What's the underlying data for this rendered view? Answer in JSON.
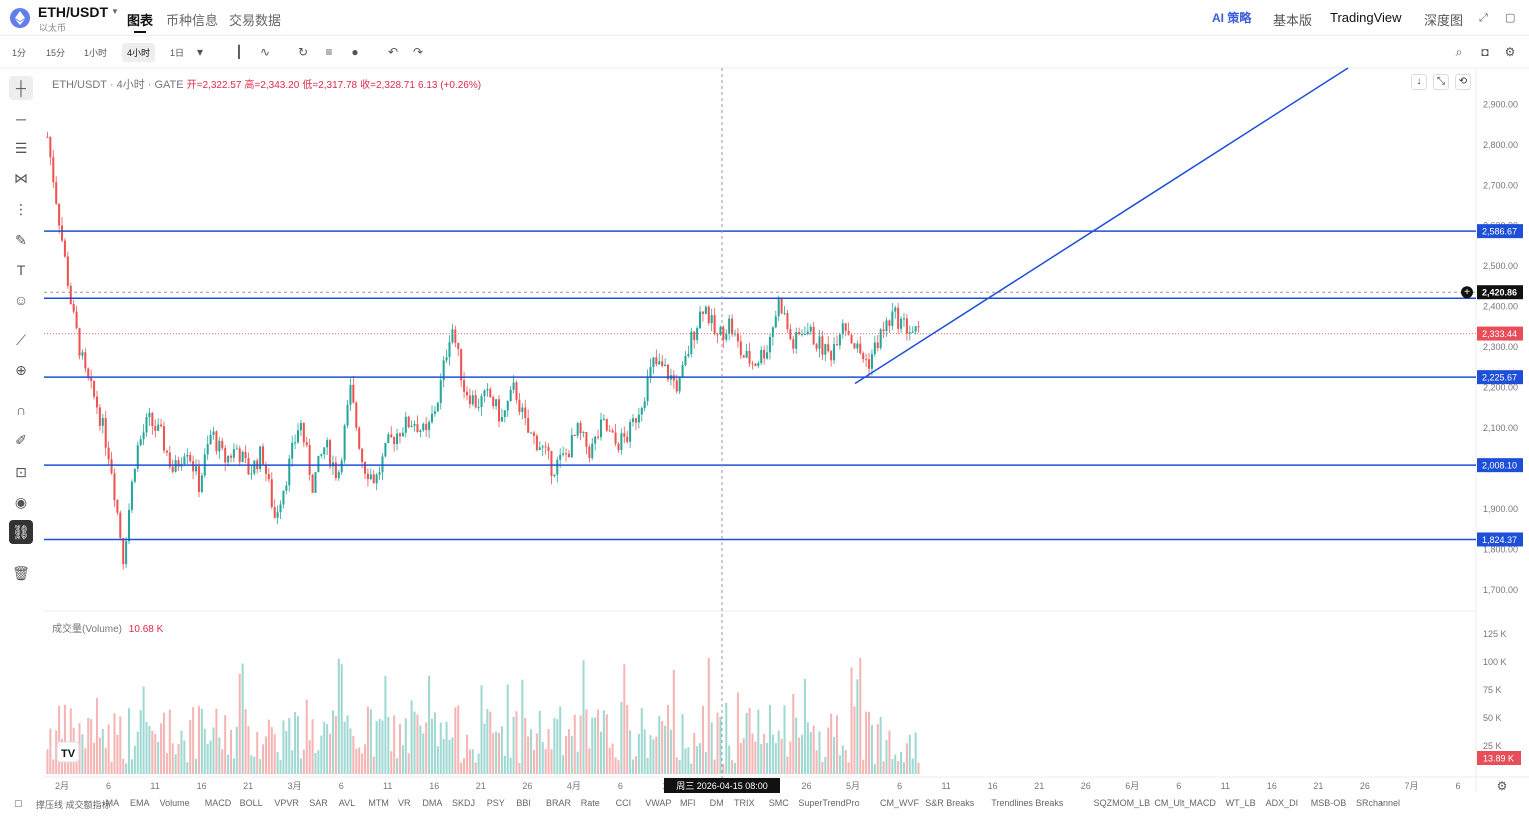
{
  "header": {
    "pair": "ETH/USDT",
    "subtitle": "以太币",
    "tabs": [
      "图表",
      "币种信息",
      "交易数据"
    ],
    "ai_label": "AI 策略",
    "links": [
      "基本版",
      "TradingView",
      "深度图"
    ]
  },
  "toolbar": {
    "timeframes": [
      "1分",
      "15分",
      "1小时",
      "4小时",
      "1日"
    ],
    "active_timeframe": "4小时"
  },
  "chart": {
    "symbol_line": "ETH/USDT · 4小时 · GATE",
    "open_label": "开=2,322.57",
    "high_label": "高=2,343.20",
    "low_label": "低=2,317.78",
    "close_label": "收=2,328.71",
    "change_label": "6.13 (+0.26%)",
    "volume_label": "成交量(Volume)",
    "volume_value": "10.68 K",
    "crosshair_time": "周三 2026-04-15   08:00",
    "colors": {
      "up": "#26a69a",
      "down": "#ef5350",
      "hline": "#1e4fd8",
      "accent": "#e0294a"
    }
  },
  "chart_data": {
    "type": "candlestick",
    "price_ticks": [
      "2,900.00",
      "2,800.00",
      "2,700.00",
      "2,600.00",
      "2,500.00",
      "2,400.00",
      "2,300.00",
      "2,200.00",
      "2,100.00",
      "2,000.00",
      "1,900.00",
      "1,800.00",
      "1,700.00"
    ],
    "volume_ticks": [
      "125 K",
      "100 K",
      "75 K",
      "50 K",
      "25 K"
    ],
    "ylim": [
      1650,
      2990
    ],
    "x_labels": [
      "2月",
      "6",
      "11",
      "16",
      "21",
      "3月",
      "6",
      "11",
      "16",
      "21",
      "26",
      "4月",
      "6",
      "11",
      "16",
      "21",
      "26",
      "5月",
      "6",
      "11",
      "16",
      "21",
      "26",
      "6月",
      "6",
      "11",
      "16",
      "21",
      "26",
      "7月",
      "6"
    ],
    "horizontal_lines": [
      {
        "value": 2586.67,
        "label": "2,586.67"
      },
      {
        "value": 2420.86,
        "label": ""
      },
      {
        "value": 2225.67,
        "label": "2,225.67"
      },
      {
        "value": 2008.1,
        "label": "2,008.10"
      },
      {
        "value": 1824.37,
        "label": "1,824.37"
      }
    ],
    "price_labels": [
      {
        "value": 2420.86,
        "label": "2,420.86",
        "style": "dark"
      },
      {
        "value": 2333.44,
        "label": "2,333.44",
        "style": "red"
      }
    ],
    "current_volume_label": "13.89 K",
    "close_path": [
      2820,
      2600,
      2380,
      2230,
      2150,
      2020,
      1780,
      2040,
      2120,
      2080,
      1990,
      2060,
      1960,
      2090,
      2020,
      2050,
      1990,
      2040,
      1880,
      1990,
      2120,
      1960,
      2060,
      1980,
      2190,
      2010,
      1970,
      2060,
      2100,
      2120,
      2080,
      2180,
      2360,
      2200,
      2160,
      2180,
      2120,
      2200,
      2090,
      2060,
      2000,
      2030,
      2090,
      2040,
      2110,
      2060,
      2080,
      2160,
      2260,
      2240,
      2200,
      2320,
      2410,
      2320,
      2360,
      2280,
      2260,
      2300,
      2420,
      2300,
      2350,
      2310,
      2280,
      2370,
      2300,
      2260,
      2330,
      2380,
      2350,
      2330
    ]
  },
  "indicators": [
    "撑压线",
    "成交额指标",
    "MA",
    "EMA",
    "Volume",
    "MACD",
    "BOLL",
    "VPVR",
    "SAR",
    "AVL",
    "MTM",
    "VR",
    "DMA",
    "SKDJ",
    "PSY",
    "BBI",
    "BRAR",
    "Rate",
    "CCI",
    "VWAP",
    "MFI",
    "DM",
    "TRIX",
    "SMC",
    "SuperTrendPro",
    "CM_WVF",
    "S&R Breaks",
    "Trendlines Breaks",
    "SQZMOM_LB",
    "CM_Ult_MACD",
    "WT_LB",
    "ADX_DI",
    "MSB-OB",
    "SRchannel"
  ]
}
